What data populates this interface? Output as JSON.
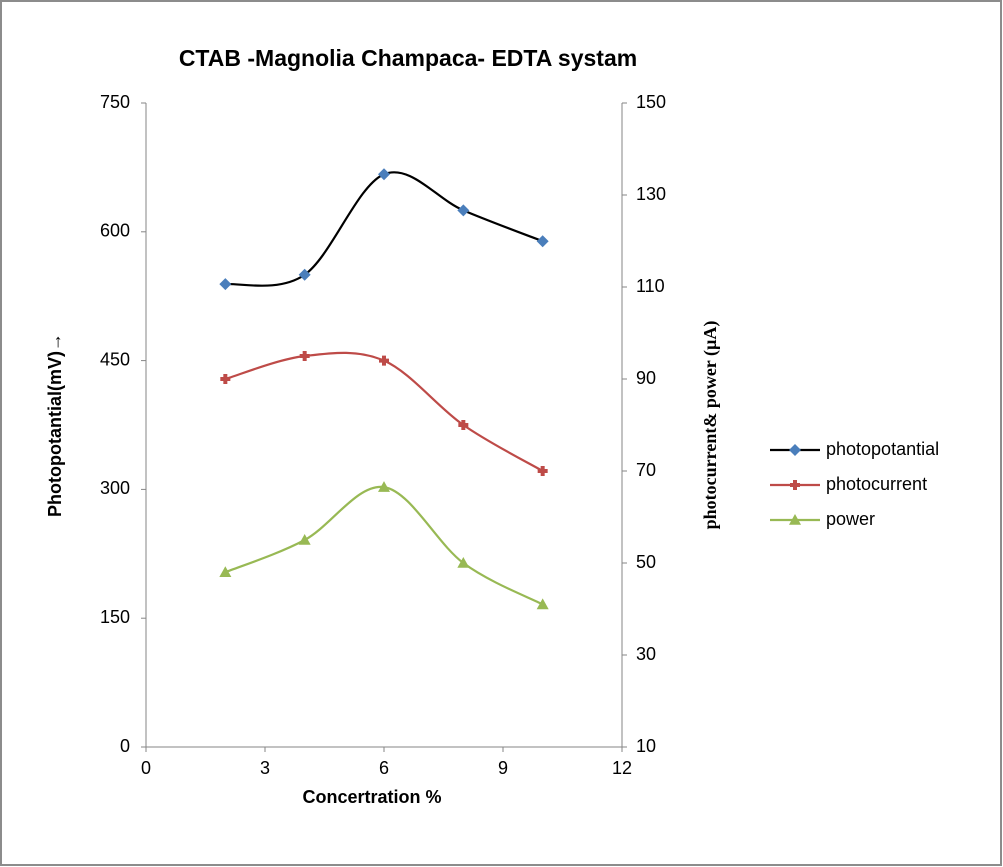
{
  "chart_data": {
    "type": "line",
    "title": "CTAB -Magnolia Champaca- EDTA systam",
    "x_label": "Concertration %",
    "y_label": "Photopotantial(mV)→",
    "y2_label": "photocurrent& power (µA)",
    "x": [
      2,
      4,
      6,
      8,
      10
    ],
    "series": [
      {
        "name": "photopotantial",
        "color": "#4a7ebb",
        "line_color": "#000000",
        "marker": "diamond",
        "axis": "y",
        "values": [
          539,
          550,
          667,
          625,
          589
        ]
      },
      {
        "name": "photocurrent",
        "color": "#be4b48",
        "line_color": "#be4b48",
        "marker": "square",
        "axis": "y2",
        "values": [
          90,
          95,
          94,
          80,
          70
        ]
      },
      {
        "name": "power",
        "color": "#98b954",
        "line_color": "#98b954",
        "marker": "triangle",
        "axis": "y2",
        "values": [
          48,
          55,
          66.5,
          50,
          41
        ]
      }
    ],
    "xlim": [
      0,
      12
    ],
    "xticks": [
      0,
      3,
      6,
      9,
      12
    ],
    "ylim": [
      0,
      750
    ],
    "yticks": [
      0,
      150,
      300,
      450,
      600,
      750
    ],
    "y2lim": [
      10,
      150
    ],
    "y2ticks": [
      10,
      30,
      50,
      70,
      90,
      110,
      130,
      150
    ],
    "smooth": true,
    "grid": false,
    "legend": "right"
  }
}
